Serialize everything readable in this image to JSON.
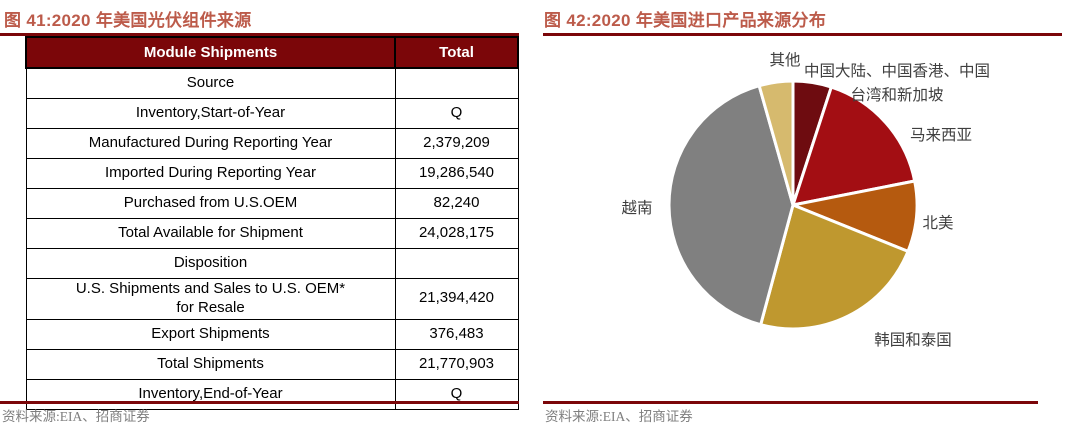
{
  "figure41": {
    "title": "图 41:2020 年美国光伏组件来源",
    "source": "资料来源:EIA、招商证券"
  },
  "figure42": {
    "title": "图 42:2020 年美国进口产品来源分布",
    "source": "资料来源:EIA、招商证券"
  },
  "chart_data": [
    {
      "type": "table",
      "title": "2020 年美国光伏组件来源",
      "columns": [
        "Module Shipments",
        "Total"
      ],
      "rows": [
        [
          "Source",
          ""
        ],
        [
          "Inventory,Start-of-Year",
          "Q"
        ],
        [
          "Manufactured During Reporting Year",
          "2,379,209"
        ],
        [
          "Imported During Reporting Year",
          "19,286,540"
        ],
        [
          "Purchased from U.S.OEM",
          "82,240"
        ],
        [
          "Total Available for Shipment",
          "24,028,175"
        ],
        [
          "Disposition",
          ""
        ],
        [
          "U.S. Shipments and Sales to U.S. OEM*\nfor Resale",
          "21,394,420"
        ],
        [
          "Export Shipments",
          "376,483"
        ],
        [
          "Total Shipments",
          "21,770,903"
        ],
        [
          "Inventory,End-of-Year",
          "Q"
        ]
      ]
    },
    {
      "type": "pie",
      "title": "2020 年美国进口产品来源分布",
      "direction": "clockwise",
      "start_angle": "12-o'clock",
      "legend_position": "outside-labels",
      "slices": [
        {
          "label": "中国大陆、中国香港、中国台湾和新加坡",
          "value_pct": 5.0,
          "color": "#6E0C10"
        },
        {
          "label": "马来西亚",
          "value_pct": 16.9,
          "color": "#A30E13"
        },
        {
          "label": "北美",
          "value_pct": 9.2,
          "color": "#B55A0F"
        },
        {
          "label": "韩国和泰国",
          "value_pct": 23.1,
          "color": "#BF982F"
        },
        {
          "label": "越南",
          "value_pct": 41.4,
          "color": "#808080"
        },
        {
          "label": "其他",
          "value_pct": 4.4,
          "color": "#D6BA6E"
        }
      ]
    }
  ],
  "colors": {
    "accent_dark_red": "#7B0609",
    "title_salmon": "#BC5B4A",
    "source_gray": "#7F7F7F"
  }
}
